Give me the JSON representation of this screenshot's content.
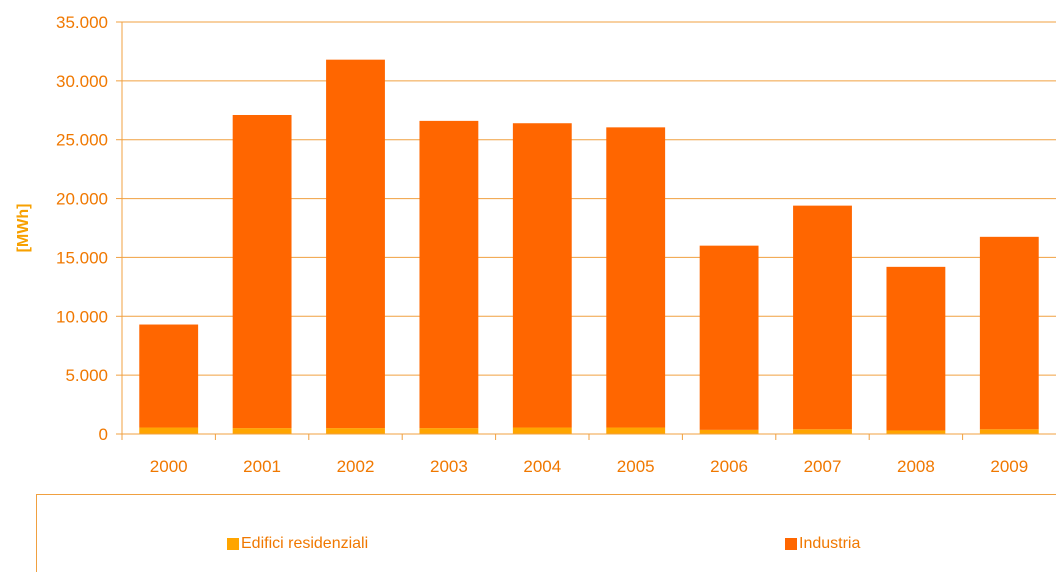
{
  "chart_data": {
    "type": "bar",
    "stacked": true,
    "categories": [
      "2000",
      "2001",
      "2002",
      "2003",
      "2004",
      "2005",
      "2006",
      "2007",
      "2008",
      "2009"
    ],
    "series": [
      {
        "name": "Edifici residenziali",
        "color": "#ffa500",
        "values": [
          550,
          500,
          500,
          500,
          550,
          550,
          350,
          400,
          300,
          400
        ]
      },
      {
        "name": "Industria",
        "color": "#ff6600",
        "values": [
          8750,
          26600,
          31300,
          26100,
          25850,
          25500,
          15650,
          19000,
          13900,
          16350
        ]
      }
    ],
    "ylabel": "[MWh]",
    "ylim": [
      0,
      35000
    ],
    "yticks": [
      "0",
      "5.000",
      "10.000",
      "15.000",
      "20.000",
      "25.000",
      "30.000",
      "35.000"
    ],
    "ytick_values": [
      0,
      5000,
      10000,
      15000,
      20000,
      25000,
      30000,
      35000
    ],
    "grid": true,
    "legend_position": "bottom"
  },
  "colors": {
    "axis": "#f0a040",
    "grid": "#f0a040",
    "tick_text": "#f07800"
  }
}
